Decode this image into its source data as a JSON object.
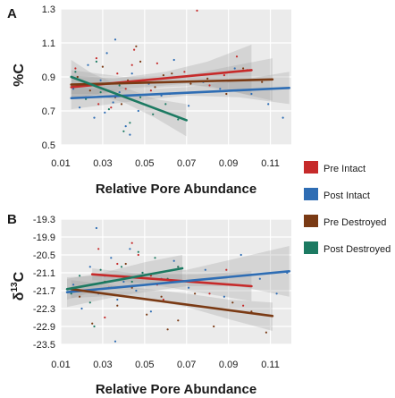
{
  "chart_data": [
    {
      "type": "scatter",
      "panel_label": "A",
      "xlabel": "Relative Pore Abundance",
      "ylabel": "%C",
      "xlim": [
        0.01,
        0.12
      ],
      "ylim": [
        0.5,
        1.3
      ],
      "xticks": [
        0.01,
        0.03,
        0.05,
        0.07,
        0.09,
        0.11
      ],
      "xtick_labels": [
        "0.01",
        "0.03",
        "0.05",
        "0.07",
        "0.09",
        "0.11"
      ],
      "yticks": [
        0.5,
        0.7,
        0.9,
        1.1,
        1.3
      ],
      "ytick_labels": [
        "0.5",
        "0.7",
        "0.9",
        "1.1",
        "1.3"
      ],
      "grid": true,
      "series": [
        {
          "name": "Pre Intact",
          "color": "#c62a2a",
          "line": {
            "x": [
              0.015,
              0.101
            ],
            "y": [
              0.84,
              0.94
            ]
          },
          "band": {
            "x": [
              0.015,
              0.035,
              0.06,
              0.08,
              0.101
            ],
            "upper": [
              0.91,
              0.89,
              0.93,
              0.99,
              1.09
            ],
            "lower": [
              0.77,
              0.81,
              0.84,
              0.85,
              0.79
            ]
          },
          "points": {
            "x": [
              0.017,
              0.022,
              0.027,
              0.031,
              0.034,
              0.037,
              0.041,
              0.045,
              0.049,
              0.056,
              0.062,
              0.069,
              0.075,
              0.081,
              0.088,
              0.094,
              0.099,
              0.028,
              0.044,
              0.053
            ],
            "y": [
              0.95,
              0.78,
              1.01,
              0.86,
              0.72,
              0.92,
              0.83,
              1.06,
              0.88,
              0.98,
              0.8,
              0.93,
              1.29,
              0.85,
              0.91,
              1.02,
              0.94,
              0.74,
              0.97,
              0.82
            ]
          }
        },
        {
          "name": "Post Intact",
          "color": "#2e6db4",
          "line": {
            "x": [
              0.015,
              0.119
            ],
            "y": [
              0.775,
              0.835
            ]
          },
          "band": {
            "x": [
              0.015,
              0.04,
              0.07,
              0.095,
              0.119
            ],
            "upper": [
              0.84,
              0.82,
              0.84,
              0.88,
              0.93
            ],
            "lower": [
              0.71,
              0.75,
              0.79,
              0.78,
              0.74
            ]
          },
          "points": {
            "x": [
              0.016,
              0.019,
              0.023,
              0.026,
              0.029,
              0.032,
              0.035,
              0.038,
              0.041,
              0.044,
              0.047,
              0.052,
              0.058,
              0.064,
              0.071,
              0.078,
              0.086,
              0.093,
              0.101,
              0.109,
              0.116,
              0.036,
              0.043,
              0.031
            ],
            "y": [
              0.83,
              0.72,
              0.97,
              0.66,
              0.88,
              1.04,
              0.75,
              0.81,
              0.61,
              0.92,
              0.7,
              0.86,
              0.79,
              1.0,
              0.73,
              0.87,
              0.83,
              0.95,
              0.8,
              0.74,
              0.66,
              1.12,
              0.56,
              0.69
            ]
          }
        },
        {
          "name": "Pre Destroyed",
          "color": "#7a3a14",
          "line": {
            "x": [
              0.015,
              0.111
            ],
            "y": [
              0.855,
              0.885
            ]
          },
          "band": {
            "x": [
              0.015,
              0.04,
              0.07,
              0.09,
              0.111
            ],
            "upper": [
              0.94,
              0.9,
              0.91,
              0.96,
              1.01
            ],
            "lower": [
              0.77,
              0.83,
              0.86,
              0.82,
              0.76
            ]
          },
          "points": {
            "x": [
              0.018,
              0.024,
              0.03,
              0.036,
              0.042,
              0.048,
              0.055,
              0.063,
              0.072,
              0.08,
              0.089,
              0.097,
              0.106,
              0.039,
              0.046,
              0.059
            ],
            "y": [
              0.9,
              0.82,
              0.96,
              0.78,
              0.88,
              0.99,
              0.84,
              0.92,
              0.86,
              0.89,
              0.8,
              0.95,
              0.87,
              0.74,
              1.08,
              0.91
            ]
          }
        },
        {
          "name": "Post Destroyed",
          "color": "#1c7a62",
          "line": {
            "x": [
              0.015,
              0.07
            ],
            "y": [
              0.9,
              0.645
            ]
          },
          "band": {
            "x": [
              0.015,
              0.025,
              0.04,
              0.055,
              0.07
            ],
            "upper": [
              1.0,
              0.92,
              0.84,
              0.77,
              0.74
            ],
            "lower": [
              0.8,
              0.8,
              0.75,
              0.66,
              0.55
            ]
          },
          "points": {
            "x": [
              0.017,
              0.022,
              0.027,
              0.033,
              0.038,
              0.043,
              0.048,
              0.054,
              0.06,
              0.066,
              0.04,
              0.029
            ],
            "y": [
              0.93,
              0.77,
              0.99,
              0.71,
              0.85,
              0.63,
              0.78,
              0.68,
              0.74,
              0.65,
              0.58,
              0.81
            ]
          }
        }
      ]
    },
    {
      "type": "scatter",
      "panel_label": "B",
      "xlabel": "Relative Pore Abundance",
      "ylabel_main": "δ",
      "ylabel_sup": "13",
      "ylabel_tail": "C",
      "xlim": [
        0.01,
        0.12
      ],
      "ylim": [
        -23.5,
        -19.3
      ],
      "xticks": [
        0.01,
        0.03,
        0.05,
        0.07,
        0.09,
        0.11
      ],
      "xtick_labels": [
        "0.01",
        "0.03",
        "0.05",
        "0.07",
        "0.09",
        "0.11"
      ],
      "yticks": [
        -23.5,
        -22.9,
        -22.3,
        -21.7,
        -21.1,
        -20.5,
        -19.9,
        -19.3
      ],
      "ytick_labels": [
        "-23.5",
        "-22.9",
        "-22.3",
        "-21.7",
        "-21.1",
        "-20.5",
        "-19.9",
        "-19.3"
      ],
      "grid": true,
      "series": [
        {
          "name": "Pre Intact",
          "color": "#c62a2a",
          "line": {
            "x": [
              0.025,
              0.101
            ],
            "y": [
              -21.15,
              -21.55
            ]
          },
          "band": {
            "x": [
              0.025,
              0.05,
              0.075,
              0.101
            ],
            "upper": [
              -20.95,
              -21.15,
              -21.15,
              -21.05
            ],
            "lower": [
              -21.35,
              -21.45,
              -21.75,
              -22.05
            ]
          },
          "points": {
            "x": [
              0.028,
              0.033,
              0.037,
              0.042,
              0.047,
              0.053,
              0.059,
              0.066,
              0.073,
              0.081,
              0.089,
              0.097,
              0.031,
              0.044,
              0.056
            ],
            "y": [
              -20.3,
              -21.6,
              -20.8,
              -21.9,
              -20.5,
              -21.2,
              -22.0,
              -20.9,
              -21.4,
              -21.8,
              -21.0,
              -22.2,
              -22.6,
              -20.1,
              -21.5
            ]
          }
        },
        {
          "name": "Post Intact",
          "color": "#2e6db4",
          "line": {
            "x": [
              0.013,
              0.119
            ],
            "y": [
              -21.75,
              -21.05
            ]
          },
          "band": {
            "x": [
              0.013,
              0.04,
              0.07,
              0.095,
              0.119
            ],
            "upper": [
              -21.25,
              -21.15,
              -21.0,
              -20.6,
              -20.2
            ],
            "lower": [
              -22.25,
              -21.85,
              -21.55,
              -21.55,
              -21.9
            ]
          },
          "points": {
            "x": [
              0.016,
              0.02,
              0.024,
              0.028,
              0.031,
              0.034,
              0.037,
              0.04,
              0.043,
              0.046,
              0.049,
              0.053,
              0.058,
              0.064,
              0.071,
              0.079,
              0.088,
              0.096,
              0.105,
              0.113,
              0.118,
              0.036,
              0.027
            ],
            "y": [
              -21.5,
              -22.3,
              -20.9,
              -21.8,
              -21.2,
              -20.6,
              -22.0,
              -21.4,
              -20.3,
              -21.7,
              -21.1,
              -22.4,
              -21.3,
              -20.7,
              -21.6,
              -21.0,
              -21.9,
              -20.5,
              -21.3,
              -21.8,
              -21.1,
              -23.4,
              -19.6
            ]
          }
        },
        {
          "name": "Pre Destroyed",
          "color": "#7a3a14",
          "line": {
            "x": [
              0.015,
              0.111
            ],
            "y": [
              -21.65,
              -22.55
            ]
          },
          "band": {
            "x": [
              0.015,
              0.04,
              0.07,
              0.09,
              0.111
            ],
            "upper": [
              -21.35,
              -21.55,
              -21.8,
              -22.0,
              -22.1
            ],
            "lower": [
              -21.95,
              -21.85,
              -22.25,
              -22.65,
              -23.05
            ]
          },
          "points": {
            "x": [
              0.019,
              0.025,
              0.031,
              0.037,
              0.044,
              0.051,
              0.058,
              0.066,
              0.074,
              0.083,
              0.092,
              0.101,
              0.108,
              0.041,
              0.061
            ],
            "y": [
              -21.9,
              -22.8,
              -21.4,
              -22.2,
              -21.6,
              -22.5,
              -21.9,
              -22.7,
              -21.8,
              -22.9,
              -22.1,
              -22.4,
              -23.1,
              -20.8,
              -23.0
            ]
          }
        },
        {
          "name": "Post Destroyed",
          "color": "#1c7a62",
          "line": {
            "x": [
              0.013,
              0.068
            ],
            "y": [
              -21.65,
              -20.95
            ]
          },
          "band": {
            "x": [
              0.013,
              0.03,
              0.05,
              0.068
            ],
            "upper": [
              -21.3,
              -21.1,
              -20.75,
              -20.5
            ],
            "lower": [
              -22.0,
              -21.65,
              -21.45,
              -21.4
            ]
          },
          "points": {
            "x": [
              0.015,
              0.019,
              0.024,
              0.029,
              0.034,
              0.039,
              0.044,
              0.049,
              0.055,
              0.061,
              0.066,
              0.026,
              0.047
            ],
            "y": [
              -21.8,
              -21.2,
              -22.1,
              -21.0,
              -21.6,
              -20.9,
              -21.4,
              -21.1,
              -20.6,
              -21.3,
              -20.9,
              -22.9,
              -20.4
            ]
          }
        }
      ]
    }
  ],
  "legend": {
    "items": [
      {
        "label": "Pre Intact",
        "color": "#c62a2a"
      },
      {
        "label": "Post Intact",
        "color": "#2e6db4"
      },
      {
        "label": "Pre Destroyed",
        "color": "#7a3a14"
      },
      {
        "label": "Post Destroyed",
        "color": "#1c7a62"
      }
    ]
  },
  "style": {
    "plot_bg": "#ebebeb",
    "grid": "#ffffff",
    "band_fill": "#9a9a9a",
    "text": "#1a1a1a"
  }
}
